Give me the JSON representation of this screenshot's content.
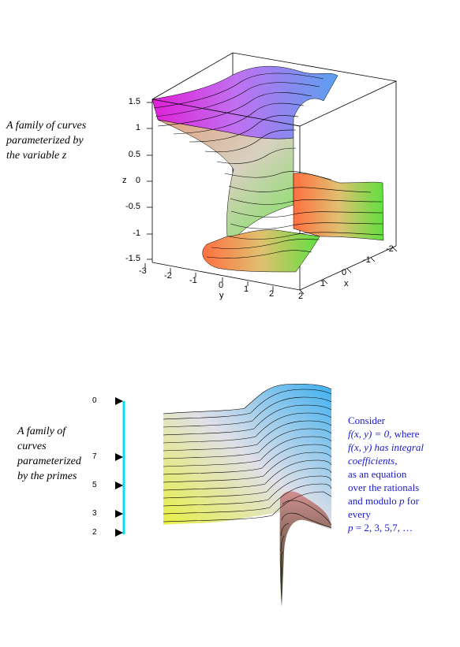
{
  "plot1": {
    "caption": [
      "A family of curves",
      "parameterized by",
      "the variable z"
    ],
    "z_label": "z",
    "x_label": "x",
    "y_label": "y",
    "z_ticks": [
      "1.5",
      "1",
      "0.5",
      "0",
      "-0.5",
      "-1",
      "-1.5"
    ],
    "y_ticks": [
      "-3",
      "-2",
      "-1",
      "0",
      "1",
      "2"
    ],
    "x_ticks": [
      "-2",
      "-1",
      "0",
      "1",
      "2"
    ]
  },
  "plot2": {
    "caption": [
      "A family of",
      "curves",
      "parameterized",
      "by the primes"
    ],
    "prime_ticks": [
      "0",
      "7",
      "5",
      "3",
      "2"
    ],
    "axis_color": "#00e0f0"
  },
  "consider": {
    "l1": "Consider",
    "l2a": "f(x, y) = 0",
    "l2b": ", where",
    "l3": "f(x, y) has integral",
    "l4": "coefficients,",
    "l5": "as an equation",
    "l6": "over the rationals",
    "l7a": "and modulo ",
    "l7b": "p",
    "l7c": " for",
    "l8": "every",
    "l9a": "p",
    "l9b": " = 2, 3, 5,7,  …"
  },
  "colors": {
    "text_blue": "#1a1acc"
  }
}
